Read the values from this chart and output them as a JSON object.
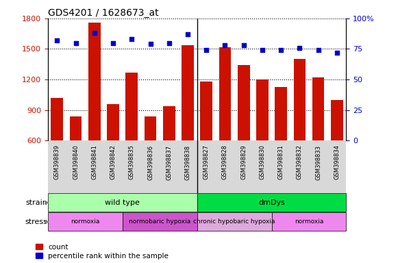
{
  "title": "GDS4201 / 1628673_at",
  "samples": [
    "GSM398839",
    "GSM398840",
    "GSM398841",
    "GSM398842",
    "GSM398835",
    "GSM398836",
    "GSM398837",
    "GSM398838",
    "GSM398827",
    "GSM398828",
    "GSM398829",
    "GSM398830",
    "GSM398831",
    "GSM398832",
    "GSM398833",
    "GSM398834"
  ],
  "counts": [
    1020,
    840,
    1760,
    960,
    1270,
    840,
    940,
    1540,
    1180,
    1520,
    1340,
    1200,
    1130,
    1400,
    1220,
    1000
  ],
  "percentile_ranks": [
    82,
    80,
    88,
    80,
    83,
    79,
    80,
    87,
    74,
    78,
    78,
    74,
    74,
    76,
    74,
    72
  ],
  "ylim_left": [
    600,
    1800
  ],
  "ylim_right": [
    0,
    100
  ],
  "yticks_left": [
    600,
    900,
    1200,
    1500,
    1800
  ],
  "yticks_right": [
    0,
    25,
    50,
    75,
    100
  ],
  "bar_color": "#cc1100",
  "dot_color": "#0000cc",
  "plot_bg": "#ffffff",
  "tick_bg": "#d8d8d8",
  "strain_groups": [
    {
      "label": "wild type",
      "start": 0,
      "end": 8,
      "color": "#aaffaa"
    },
    {
      "label": "dmDys",
      "start": 8,
      "end": 16,
      "color": "#00dd44"
    }
  ],
  "stress_groups": [
    {
      "label": "normoxia",
      "start": 0,
      "end": 4,
      "color": "#ee88ee"
    },
    {
      "label": "normobaric hypoxia",
      "start": 4,
      "end": 8,
      "color": "#cc55cc"
    },
    {
      "label": "chronic hypobaric hypoxia",
      "start": 8,
      "end": 12,
      "color": "#ddaadd"
    },
    {
      "label": "normoxia",
      "start": 12,
      "end": 16,
      "color": "#ee88ee"
    }
  ],
  "n_samples": 16,
  "sep_index": 7.5
}
